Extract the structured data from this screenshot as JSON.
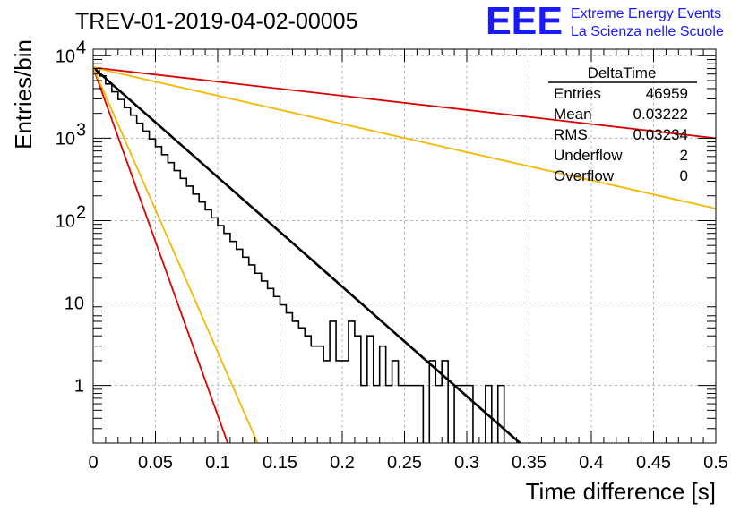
{
  "plot_title": "TREV-01-2019-04-02-00005",
  "logo": {
    "letters": "EEE",
    "line1": "Extreme Energy Events",
    "line2": "La Scienza nelle Scuole",
    "color": "#1a1aff"
  },
  "stats": {
    "name": "DeltaTime",
    "rows": [
      {
        "label": "Entries",
        "value": "46959"
      },
      {
        "label": "Mean",
        "value": "0.03222"
      },
      {
        "label": "RMS",
        "value": "0.03234"
      },
      {
        "label": "Underflow",
        "value": "2"
      },
      {
        "label": "Overflow",
        "value": "0"
      }
    ]
  },
  "chart_data": {
    "type": "line",
    "xlabel": "Time difference [s]",
    "ylabel": "Entries/bin",
    "xlim": [
      0,
      0.5
    ],
    "ylim": [
      0.2,
      12000
    ],
    "ylog": true,
    "grid": true,
    "x_ticks": [
      "0",
      "0.05",
      "0.1",
      "0.15",
      "0.2",
      "0.25",
      "0.3",
      "0.35",
      "0.4",
      "0.45",
      "0.5"
    ],
    "y_ticks": [
      {
        "value": 1,
        "label": "1"
      },
      {
        "value": 10,
        "label": "10"
      },
      {
        "value": 100,
        "label": "10",
        "exp": "2"
      },
      {
        "value": 1000,
        "label": "10",
        "exp": "3"
      },
      {
        "value": 10000,
        "label": "10",
        "exp": "4"
      }
    ],
    "histogram": {
      "name": "DeltaTime",
      "color": "#000000",
      "bin_width": 0.005,
      "bin_start": 0,
      "values": [
        7000,
        5700,
        4550,
        3650,
        2950,
        2350,
        1900,
        1520,
        1220,
        980,
        790,
        630,
        505,
        405,
        325,
        262,
        210,
        168,
        135,
        108,
        87,
        70,
        56,
        45,
        36,
        29,
        23,
        18.5,
        15,
        12,
        9.5,
        7.6,
        6,
        5,
        4,
        3,
        3,
        2,
        6,
        2,
        2,
        6,
        4,
        1,
        4,
        1,
        3,
        1,
        2,
        1,
        1,
        1,
        1,
        0,
        2,
        1,
        2,
        0,
        1,
        1,
        1,
        0,
        0,
        1,
        0,
        1,
        0,
        0,
        0,
        0,
        0,
        0,
        0,
        0,
        0,
        0,
        0,
        0,
        0,
        0,
        0,
        0,
        0,
        0,
        0,
        0,
        0,
        0,
        0,
        0,
        0,
        0,
        0,
        0,
        0,
        0,
        0,
        0,
        0,
        0
      ]
    },
    "series": [
      {
        "color": "#000000",
        "x": [
          0,
          0.35
        ],
        "y": [
          7200,
          0.16
        ]
      },
      {
        "color": "#dd0000",
        "x": [
          0,
          0.5
        ],
        "y": [
          7200,
          1000
        ]
      },
      {
        "color": "#f5b800",
        "x": [
          0,
          0.5
        ],
        "y": [
          7200,
          140
        ]
      },
      {
        "color": "#dd0000",
        "x": [
          0,
          0.108
        ],
        "y": [
          7200,
          0.2
        ]
      },
      {
        "color": "#f5b800",
        "x": [
          0,
          0.132
        ],
        "y": [
          7200,
          0.2
        ]
      }
    ]
  }
}
